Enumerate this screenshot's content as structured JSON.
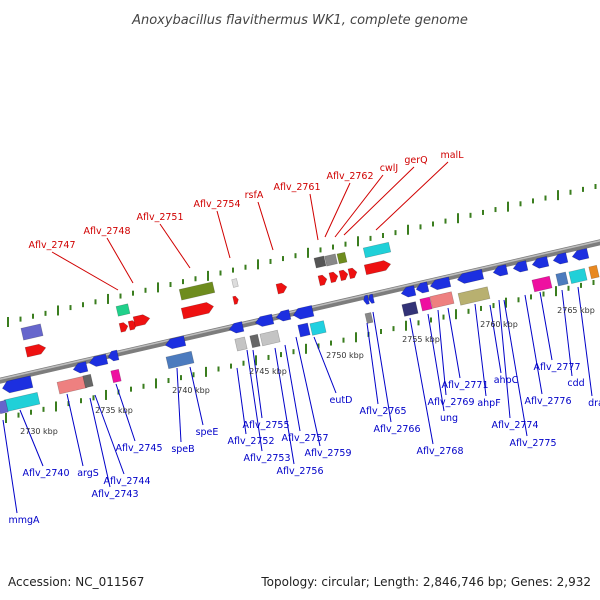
{
  "title": "Anoxybacillus flavithermus WK1, complete genome",
  "footer": {
    "accession": "Accession: NC_011567",
    "summary": "Topology: circular; Length: 2,846,746 bp; Genes: 2,932"
  },
  "colors": {
    "top_label": "#d00000",
    "bottom_label": "#0000c8",
    "backbone": "#8a8a8a",
    "tick": "#3a7d1e"
  },
  "kbp_ticks": [
    "2730 kbp",
    "2735 kbp",
    "2740 kbp",
    "2745 kbp",
    "2750 kbp",
    "2755 kbp",
    "2760 kbp",
    "2765 kbp"
  ],
  "top_labels": [
    "Aflv_2747",
    "Aflv_2748",
    "Aflv_2751",
    "Aflv_2754",
    "rsfA",
    "Aflv_2761",
    "Aflv_2762",
    "cwlJ",
    "gerQ",
    "malL"
  ],
  "bottom_labels": [
    "mmgA",
    "Aflv_2740",
    "argS",
    "Aflv_2744",
    "Aflv_2743",
    "Aflv_2745",
    "speB",
    "speE",
    "Aflv_2752",
    "Aflv_2753",
    "Aflv_2755",
    "Aflv_2756",
    "Aflv_2757",
    "Aflv_2759",
    "eutD",
    "Aflv_2765",
    "Aflv_2766",
    "Aflv_2768",
    "ung",
    "Aflv_2769",
    "Aflv_2771",
    "ahpF",
    "ahpC",
    "Aflv_2774",
    "Aflv_2775",
    "Aflv_2776",
    "Aflv_2777",
    "cdd",
    "dra"
  ]
}
